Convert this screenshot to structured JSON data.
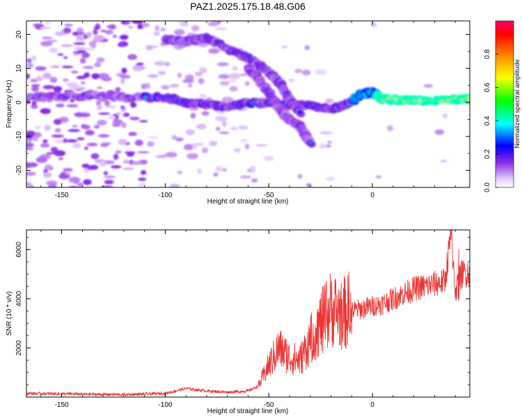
{
  "title": "PAZ1.2025.175.18.48.G06",
  "chart_data": [
    {
      "type": "heatmap",
      "xlabel": "Height of straight line (km)",
      "ylabel": "Frequency (Hz)",
      "xlim": [
        -167,
        47
      ],
      "ylim": [
        -25,
        24
      ],
      "xticks": [
        -150,
        -100,
        -50,
        0
      ],
      "yticks": [
        -20,
        -10,
        0,
        10,
        20
      ],
      "colorbar": {
        "label": "Normalized spectral amplitude",
        "range": [
          0,
          1
        ],
        "ticks": [
          0.0,
          0.2,
          0.4,
          0.6,
          0.8
        ],
        "colormap": "rainbow"
      },
      "features": {
        "main_trace": [
          [
            -165,
            1.5
          ],
          [
            -140,
            2
          ],
          [
            -120,
            1.5
          ],
          [
            -100,
            1.5
          ],
          [
            -90,
            0
          ],
          [
            -80,
            -0.5
          ],
          [
            -70,
            -1.5
          ],
          [
            -60,
            0
          ],
          [
            -45,
            -0.5
          ],
          [
            -30,
            -1
          ],
          [
            -20,
            -2
          ],
          [
            -12,
            -0.5
          ],
          [
            -5,
            2.5
          ],
          [
            0,
            3
          ],
          [
            5,
            1
          ],
          [
            20,
            0.5
          ],
          [
            40,
            0.8
          ],
          [
            47,
            1
          ]
        ],
        "upper_branch": [
          [
            -100,
            18.5
          ],
          [
            -90,
            18
          ],
          [
            -80,
            19
          ],
          [
            -70,
            16
          ],
          [
            -60,
            13
          ],
          [
            -50,
            9
          ],
          [
            -45,
            6
          ],
          [
            -40,
            1
          ],
          [
            -35,
            -3
          ]
        ],
        "lower_branch": [
          [
            -60,
            10
          ],
          [
            -55,
            7
          ],
          [
            -50,
            3
          ],
          [
            -45,
            -2
          ],
          [
            -40,
            -5
          ],
          [
            -35,
            -7
          ],
          [
            -30,
            -12
          ]
        ]
      }
    },
    {
      "type": "line",
      "xlabel": "Height of straight line (km)",
      "ylabel": "SNR (10 * v/v)",
      "xlim": [
        -167,
        47
      ],
      "ylim": [
        0,
        6800
      ],
      "xticks": [
        -150,
        -100,
        -50,
        0
      ],
      "yticks": [
        2000,
        4000,
        6000
      ],
      "color": "#ee3333",
      "envelope": [
        [
          -167,
          150
        ],
        [
          -140,
          120
        ],
        [
          -120,
          100
        ],
        [
          -100,
          150
        ],
        [
          -90,
          350
        ],
        [
          -80,
          250
        ],
        [
          -70,
          200
        ],
        [
          -60,
          250
        ],
        [
          -55,
          450
        ],
        [
          -50,
          1300
        ],
        [
          -45,
          2000
        ],
        [
          -40,
          1600
        ],
        [
          -35,
          1500
        ],
        [
          -30,
          2300
        ],
        [
          -25,
          3000
        ],
        [
          -20,
          3600
        ],
        [
          -15,
          3400
        ],
        [
          -10,
          3500
        ],
        [
          -5,
          3600
        ],
        [
          0,
          3700
        ],
        [
          5,
          3800
        ],
        [
          10,
          4000
        ],
        [
          15,
          4200
        ],
        [
          20,
          4400
        ],
        [
          25,
          4500
        ],
        [
          30,
          4600
        ],
        [
          35,
          4700
        ],
        [
          38,
          6700
        ],
        [
          40,
          4300
        ],
        [
          43,
          5000
        ],
        [
          47,
          5100
        ]
      ]
    }
  ]
}
